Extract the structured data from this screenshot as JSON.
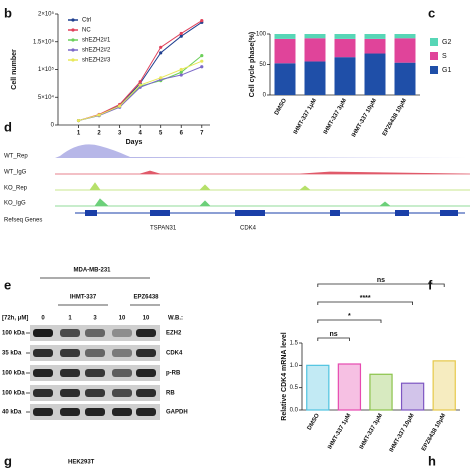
{
  "panel_labels": [
    "b",
    "c",
    "d",
    "e",
    "f",
    "g",
    "h"
  ],
  "chart_data": [
    {
      "type": "line",
      "x_label": "Days",
      "y_label": "Cell number",
      "x": [
        1,
        2,
        3,
        4,
        5,
        6,
        7
      ],
      "xlim": [
        0,
        7.4
      ],
      "xticks": [
        1,
        2,
        3,
        4,
        5,
        6,
        7
      ],
      "ylim": [
        0,
        200000
      ],
      "yticks": [
        0,
        {
          "value": 50000,
          "label": "5×10⁴"
        },
        {
          "value": 100000,
          "label": "1×10⁵"
        },
        {
          "value": 150000,
          "label": "1.5×10⁵"
        },
        {
          "value": 200000,
          "label": "2×10⁵"
        }
      ],
      "series": [
        {
          "name": "Ctrl",
          "color": "#1f3f8f",
          "values": [
            8000,
            18000,
            35000,
            75000,
            130000,
            160000,
            185000
          ]
        },
        {
          "name": "NC",
          "color": "#e0405a",
          "values": [
            8000,
            19000,
            37000,
            78000,
            140000,
            165000,
            188000
          ]
        },
        {
          "name": "shEZH2#1",
          "color": "#6ccf5a",
          "values": [
            8000,
            17000,
            33000,
            70000,
            80000,
            95000,
            125000
          ]
        },
        {
          "name": "shEZH2#2",
          "color": "#7b68c8",
          "values": [
            8000,
            17000,
            32000,
            68000,
            82000,
            90000,
            105000
          ]
        },
        {
          "name": "shEZH2#3",
          "color": "#e8e85a",
          "values": [
            8000,
            18000,
            34000,
            72000,
            85000,
            100000,
            115000
          ]
        }
      ]
    },
    {
      "type": "stacked_bar",
      "y_label": "Cell cycle phase(%)",
      "categories": [
        "DMSO",
        "IHMT-337 1μM",
        "IHMT-337 3μM",
        "IHMT-337 10μM",
        "EPZ6438 10μM"
      ],
      "ylim": [
        0,
        100
      ],
      "yticks": [
        0,
        50,
        100
      ],
      "series": [
        {
          "name": "G1",
          "color": "#1f4fa8",
          "values": [
            52,
            55,
            62,
            68,
            53
          ]
        },
        {
          "name": "S",
          "color": "#e0449a",
          "values": [
            40,
            38,
            30,
            24,
            40
          ]
        },
        {
          "name": "G2",
          "color": "#57d6b6",
          "values": [
            8,
            7,
            8,
            8,
            7
          ]
        }
      ]
    },
    {
      "type": "bar",
      "y_label": "Relative CDK4 mRNA level",
      "categories": [
        "DMSO",
        "IHMT-337 1μM",
        "IHMT-337 3μM",
        "IHMT-337 10μM",
        "EPZ6438 10μM"
      ],
      "values": [
        1.0,
        1.03,
        0.8,
        0.6,
        1.1
      ],
      "colors": [
        "#4fc3e0",
        "#e64ab0",
        "#8bc34a",
        "#7e57c2",
        "#e6c84a"
      ],
      "ylim": [
        0,
        1.5
      ],
      "yticks": [
        {
          "value": 0,
          "label": "0.0"
        },
        {
          "value": 0.5,
          "label": "0.5"
        },
        {
          "value": 1,
          "label": "1.0"
        },
        {
          "value": 1.5,
          "label": "1.5"
        }
      ],
      "significance": [
        "ns",
        "*",
        "****",
        "ns"
      ]
    }
  ],
  "tracks": {
    "labels": [
      "WT_Rep",
      "WT_IgG",
      "KO_Rep",
      "KO_IgG",
      "Refseq Genes"
    ],
    "genes": [
      "TSPAN31",
      "CDK4"
    ]
  },
  "blot": {
    "cell_line": "MDA-MB-231",
    "treatments": [
      "IHMT-337",
      "EPZ6438"
    ],
    "condition": "[72h, μM]",
    "doses": [
      "0",
      "1",
      "3",
      "10",
      "10"
    ],
    "wb_label": "W.B.:",
    "markers": [
      "100 kDa",
      "35 kDa",
      "100 kDa",
      "100 kDa",
      "40 kDa"
    ],
    "proteins": [
      "EZH2",
      "CDK4",
      "p-RB",
      "RB",
      "GAPDH"
    ]
  },
  "panel_g": {
    "cell_line": "HEK293T"
  }
}
